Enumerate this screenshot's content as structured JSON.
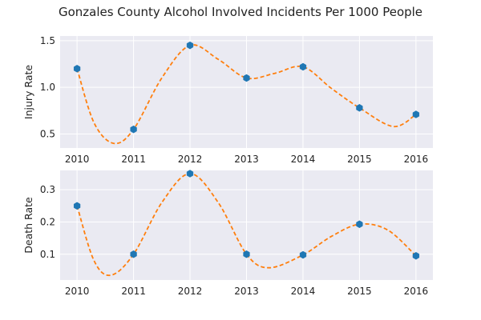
{
  "chart_data": {
    "title": "Gonzales County Alcohol Involved Incidents Per 1000 People",
    "type": "scatter",
    "panels": [
      {
        "ylabel": "Injury Rate",
        "ylim": [
          0.35,
          1.55
        ],
        "yticks": [
          0.5,
          1.0,
          1.5
        ],
        "ytick_labels": [
          "0.5",
          "1.0",
          "1.5"
        ],
        "x": [
          2010,
          2011,
          2012,
          2013,
          2014,
          2015,
          2016
        ],
        "xtick_labels": [
          "2010",
          "2011",
          "2012",
          "2013",
          "2014",
          "2015",
          "2016"
        ],
        "points": [
          1.2,
          0.55,
          1.45,
          1.1,
          1.22,
          0.78,
          0.71
        ],
        "curve": [
          [
            2010,
            1.2
          ],
          [
            2010.3,
            0.62
          ],
          [
            2010.65,
            0.4
          ],
          [
            2011,
            0.55
          ],
          [
            2011.5,
            1.1
          ],
          [
            2012,
            1.45
          ],
          [
            2012.5,
            1.3
          ],
          [
            2013,
            1.1
          ],
          [
            2013.5,
            1.15
          ],
          [
            2014,
            1.22
          ],
          [
            2014.5,
            0.99
          ],
          [
            2015,
            0.78
          ],
          [
            2015.6,
            0.58
          ],
          [
            2016,
            0.71
          ]
        ],
        "grid": true
      },
      {
        "ylabel": "Death Rate",
        "ylim": [
          0.02,
          0.36
        ],
        "yticks": [
          0.1,
          0.2,
          0.3
        ],
        "ytick_labels": [
          "0.1",
          "0.2",
          "0.3"
        ],
        "x": [
          2010,
          2011,
          2012,
          2013,
          2014,
          2015,
          2016
        ],
        "xtick_labels": [
          "2010",
          "2011",
          "2012",
          "2013",
          "2014",
          "2015",
          "2016"
        ],
        "points": [
          0.25,
          0.1,
          0.35,
          0.1,
          0.098,
          0.193,
          0.095
        ],
        "curve": [
          [
            2010,
            0.25
          ],
          [
            2010.3,
            0.08
          ],
          [
            2010.6,
            0.035
          ],
          [
            2011,
            0.1
          ],
          [
            2011.5,
            0.26
          ],
          [
            2012,
            0.35
          ],
          [
            2012.5,
            0.26
          ],
          [
            2013,
            0.1
          ],
          [
            2013.4,
            0.058
          ],
          [
            2014,
            0.098
          ],
          [
            2014.5,
            0.155
          ],
          [
            2015,
            0.193
          ],
          [
            2015.5,
            0.175
          ],
          [
            2016,
            0.095
          ]
        ],
        "grid": true
      }
    ]
  },
  "colors": {
    "panel_background": "#eaeaf2",
    "grid": "#ffffff",
    "marker": "#1f77b4",
    "curve": "#ff7f0e"
  }
}
